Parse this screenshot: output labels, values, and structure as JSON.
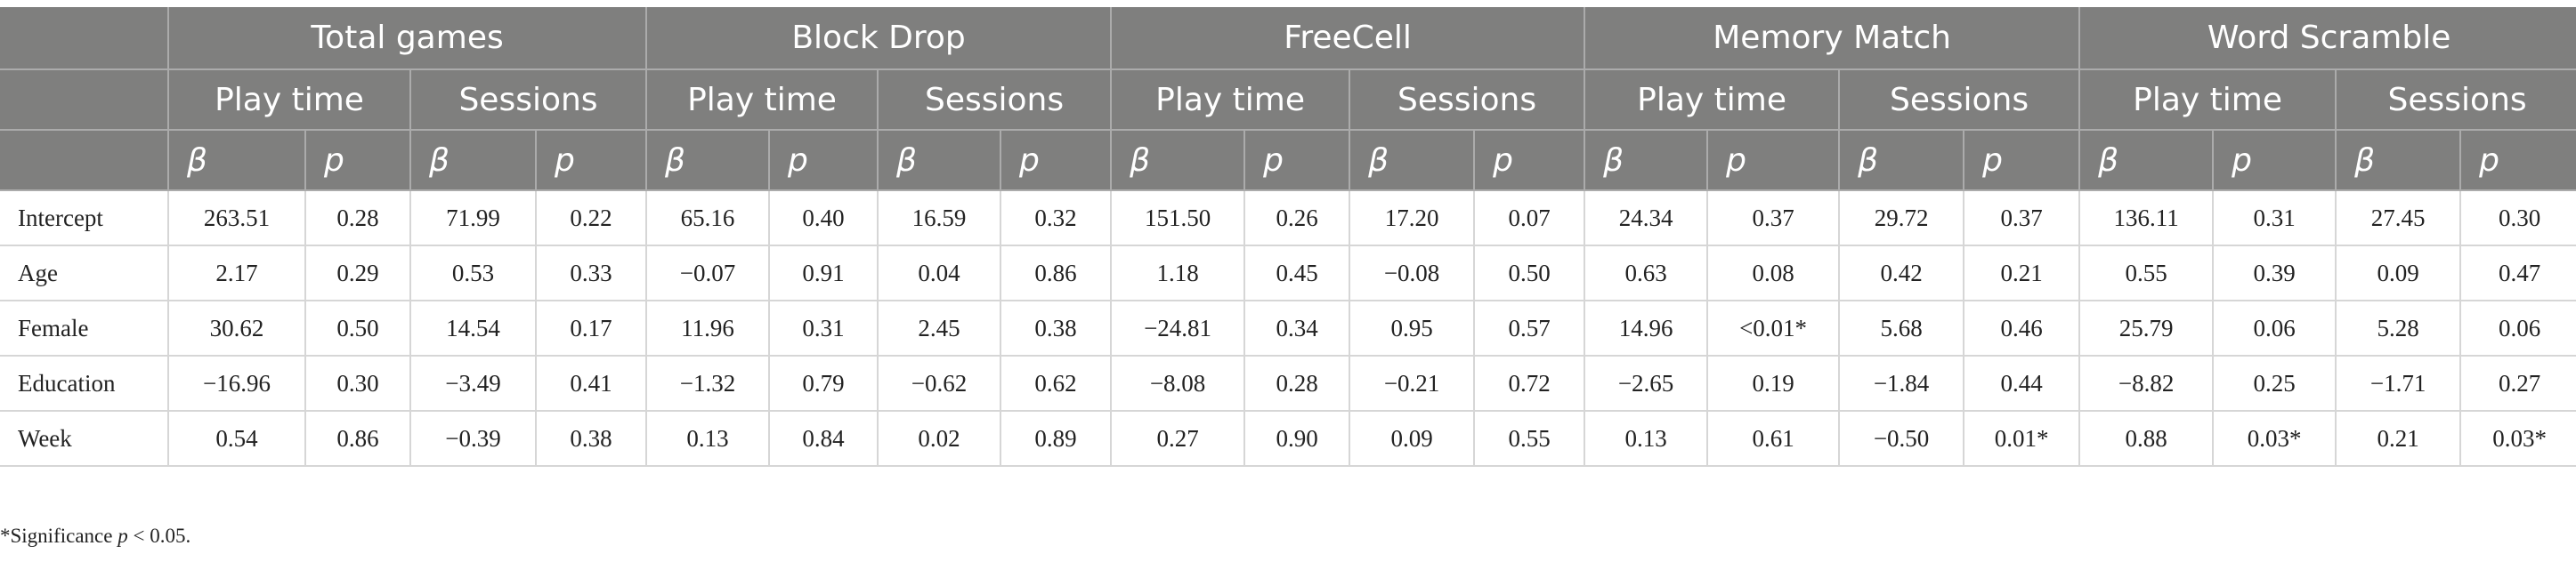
{
  "groups": [
    "Total games",
    "Block Drop",
    "FreeCell",
    "Memory Match",
    "Word Scramble"
  ],
  "measures": [
    "Play time",
    "Sessions"
  ],
  "stats": [
    "β",
    "p"
  ],
  "rows": [
    {
      "label": "Intercept",
      "values": [
        "263.51",
        "0.28",
        "71.99",
        "0.22",
        "65.16",
        "0.40",
        "16.59",
        "0.32",
        "151.50",
        "0.26",
        "17.20",
        "0.07",
        "24.34",
        "0.37",
        "29.72",
        "0.37",
        "136.11",
        "0.31",
        "27.45",
        "0.30"
      ]
    },
    {
      "label": "Age",
      "values": [
        "2.17",
        "0.29",
        "0.53",
        "0.33",
        "−0.07",
        "0.91",
        "0.04",
        "0.86",
        "1.18",
        "0.45",
        "−0.08",
        "0.50",
        "0.63",
        "0.08",
        "0.42",
        "0.21",
        "0.55",
        "0.39",
        "0.09",
        "0.47"
      ]
    },
    {
      "label": "Female",
      "values": [
        "30.62",
        "0.50",
        "14.54",
        "0.17",
        "11.96",
        "0.31",
        "2.45",
        "0.38",
        "−24.81",
        "0.34",
        "0.95",
        "0.57",
        "14.96",
        "<0.01*",
        "5.68",
        "0.46",
        "25.79",
        "0.06",
        "5.28",
        "0.06"
      ]
    },
    {
      "label": "Education",
      "values": [
        "−16.96",
        "0.30",
        "−3.49",
        "0.41",
        "−1.32",
        "0.79",
        "−0.62",
        "0.62",
        "−8.08",
        "0.28",
        "−0.21",
        "0.72",
        "−2.65",
        "0.19",
        "−1.84",
        "0.44",
        "−8.82",
        "0.25",
        "−1.71",
        "0.27"
      ]
    },
    {
      "label": "Week",
      "values": [
        "0.54",
        "0.86",
        "−0.39",
        "0.38",
        "0.13",
        "0.84",
        "0.02",
        "0.89",
        "0.27",
        "0.90",
        "0.09",
        "0.55",
        "0.13",
        "0.61",
        "−0.50",
        "0.01*",
        "0.88",
        "0.03*",
        "0.21",
        "0.03*"
      ]
    }
  ],
  "footnote": {
    "prefix": "*Significance ",
    "symbol": "p",
    "suffix": " < 0.05."
  },
  "colors": {
    "header_bg": "#7f7f7e",
    "header_text": "#ffffff",
    "grid": "#d6d6d6"
  }
}
